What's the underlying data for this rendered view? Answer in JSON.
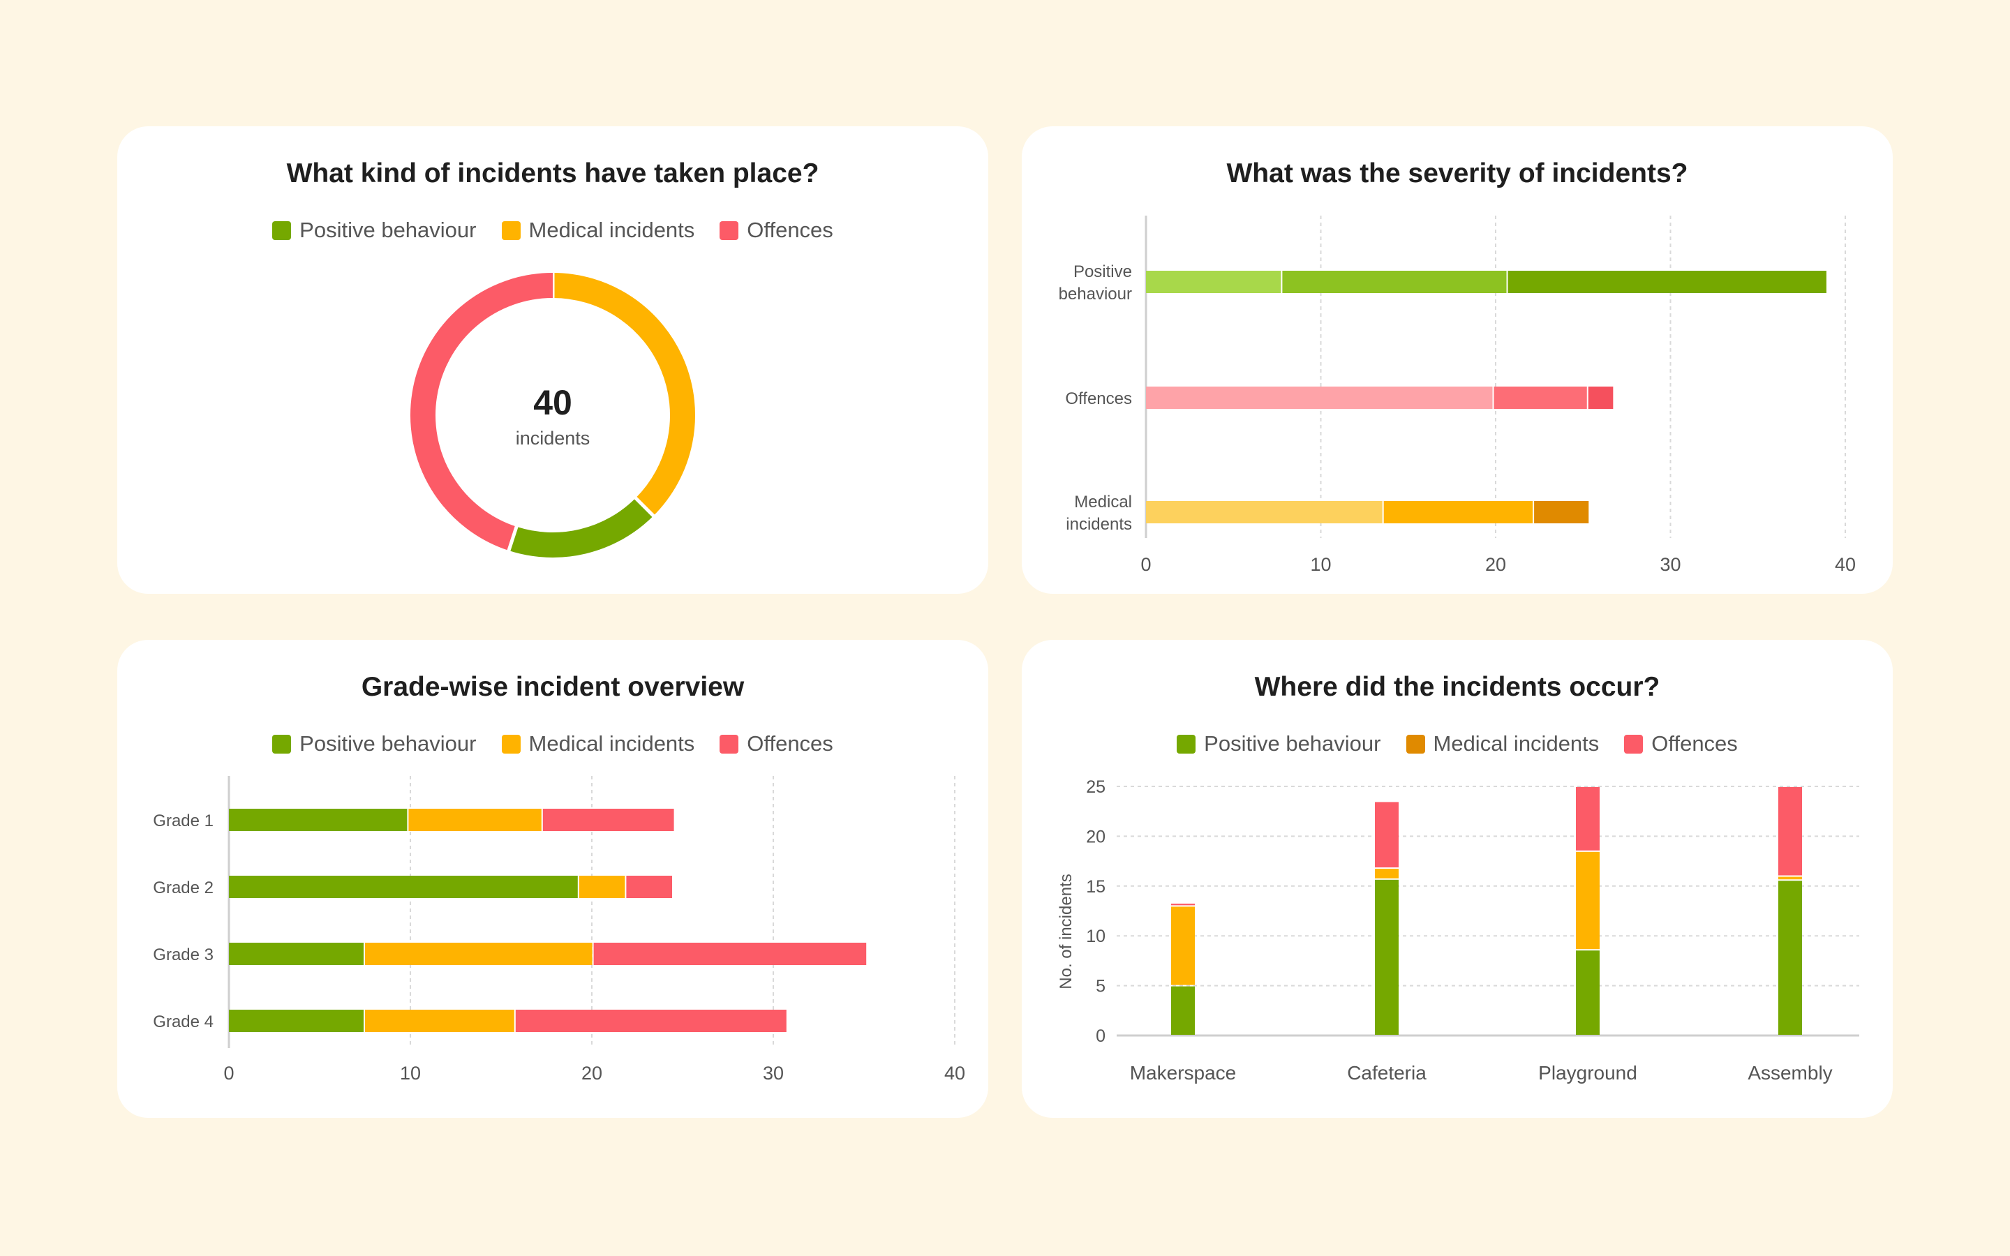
{
  "colors": {
    "background": "#fef6e4",
    "positive": "#75a800",
    "medical": "#ffb300",
    "offences": "#fc5b67",
    "grid": "#d9d9d9",
    "axis_text": "#555555"
  },
  "legend_items": [
    "Positive behaviour",
    "Medical incidents",
    "Offences"
  ],
  "chart_data": [
    {
      "id": "incident-types",
      "type": "pie",
      "title": "What kind of incidents have taken place?",
      "legend": [
        "Positive behaviour",
        "Medical incidents",
        "Offences"
      ],
      "center_value": "40",
      "center_label": "incidents",
      "slices": [
        {
          "name": "Medical incidents",
          "value": 15,
          "color": "#ffb300"
        },
        {
          "name": "Positive behaviour",
          "value": 7,
          "color": "#75a800"
        },
        {
          "name": "Offences",
          "value": 18,
          "color": "#fc5b67"
        }
      ]
    },
    {
      "id": "severity",
      "type": "bar",
      "orientation": "horizontal",
      "stacked": true,
      "title": "What was the severity of incidents?",
      "categories": [
        {
          "label_lines": [
            "Positive",
            "behaviour"
          ],
          "segments": [
            {
              "value": 7.8,
              "color": "#a8d84a"
            },
            {
              "value": 12.9,
              "color": "#8dc221"
            },
            {
              "value": 18.3,
              "color": "#75a800"
            }
          ]
        },
        {
          "label_lines": [
            "Offences"
          ],
          "segments": [
            {
              "value": 19.9,
              "color": "#fea3a8"
            },
            {
              "value": 5.4,
              "color": "#fd6d76"
            },
            {
              "value": 1.5,
              "color": "#f5505d"
            }
          ]
        },
        {
          "label_lines": [
            "Medical",
            "incidents"
          ],
          "segments": [
            {
              "value": 13.6,
              "color": "#fdd15d"
            },
            {
              "value": 8.6,
              "color": "#ffb300"
            },
            {
              "value": 3.2,
              "color": "#e08a00"
            }
          ]
        }
      ],
      "xlim": [
        0,
        40
      ],
      "xticks": [
        0,
        10,
        20,
        30,
        40
      ]
    },
    {
      "id": "grade-wise",
      "type": "bar",
      "orientation": "horizontal",
      "stacked": true,
      "title": "Grade-wise incident overview",
      "legend": [
        "Positive behaviour",
        "Medical incidents",
        "Offences"
      ],
      "categories": [
        "Grade 1",
        "Grade 2",
        "Grade 3",
        "Grade 4"
      ],
      "series": [
        {
          "name": "Positive behaviour",
          "color": "#75a800",
          "values": [
            9.9,
            19.3,
            7.5,
            7.5
          ]
        },
        {
          "name": "Medical incidents",
          "color": "#ffb300",
          "values": [
            7.4,
            2.6,
            12.6,
            8.3
          ]
        },
        {
          "name": "Offences",
          "color": "#fc5b67",
          "values": [
            7.3,
            2.6,
            15.1,
            15.0
          ]
        }
      ],
      "xlim": [
        0,
        40
      ],
      "xticks": [
        0,
        10,
        20,
        30,
        40
      ]
    },
    {
      "id": "locations",
      "type": "bar",
      "orientation": "vertical",
      "stacked": true,
      "title": "Where did the incidents occur?",
      "legend": [
        "Positive behaviour",
        "Medical incidents",
        "Offences"
      ],
      "legend_colors": [
        "#75a800",
        "#e08a00",
        "#fc5b67"
      ],
      "categories": [
        "Makerspace",
        "Cafeteria",
        "Playground",
        "Assembly"
      ],
      "series": [
        {
          "name": "Positive behaviour",
          "color": "#75a800",
          "values": [
            5,
            15.7,
            8.6,
            15.6
          ]
        },
        {
          "name": "Medical incidents",
          "color": "#ffb300",
          "values": [
            8,
            1.1,
            9.9,
            0.4
          ]
        },
        {
          "name": "Offences",
          "color": "#fc5b67",
          "values": [
            0.3,
            6.7,
            6.5,
            9.0
          ]
        }
      ],
      "ylabel": "No. of incidents",
      "ylim": [
        0,
        25
      ],
      "yticks": [
        0,
        5,
        10,
        15,
        20,
        25
      ]
    }
  ]
}
